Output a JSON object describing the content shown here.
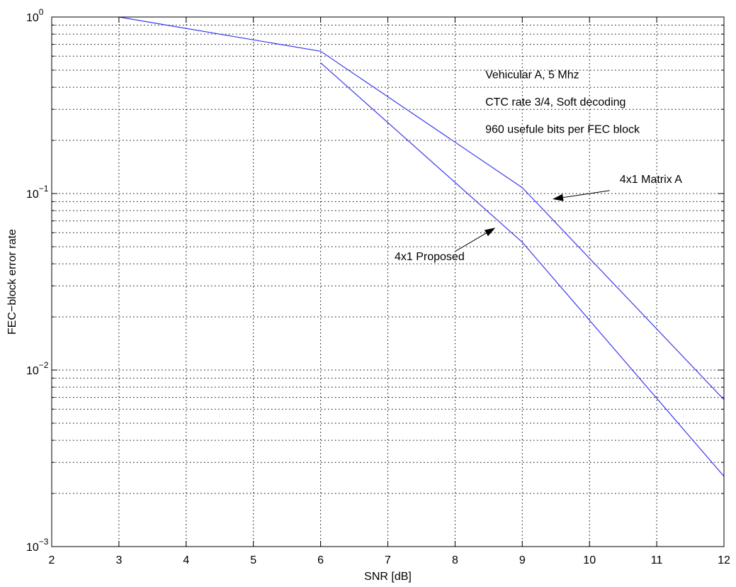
{
  "chart_data": {
    "type": "line",
    "title": "",
    "xlabel": "SNR [dB]",
    "ylabel": "FEC−block error rate",
    "xlim": [
      2,
      12
    ],
    "ylim": [
      0.001,
      1
    ],
    "yscale": "log",
    "grid": true,
    "x_ticks": [
      2,
      3,
      4,
      5,
      6,
      7,
      8,
      9,
      10,
      11,
      12
    ],
    "y_ticks": [
      {
        "value": 1,
        "base": "10",
        "exp": "0"
      },
      {
        "value": 0.1,
        "base": "10",
        "exp": "−1"
      },
      {
        "value": 0.01,
        "base": "10",
        "exp": "−2"
      },
      {
        "value": 0.001,
        "base": "10",
        "exp": "−3"
      }
    ],
    "line_color": "#3a3af0",
    "series": [
      {
        "name": "4x1 Matrix A",
        "x": [
          3,
          6,
          9,
          12
        ],
        "y": [
          1.0,
          0.64,
          0.108,
          0.0068
        ]
      },
      {
        "name": "4x1 Proposed",
        "x": [
          6,
          9,
          12
        ],
        "y": [
          0.55,
          0.053,
          0.0025
        ]
      }
    ],
    "annotations": [
      {
        "id": "conditions-line-1",
        "text": "Vehicular A, 5 Mhz",
        "at": [
          8.45,
          0.45
        ]
      },
      {
        "id": "conditions-line-2",
        "text": "CTC rate 3/4, Soft decoding",
        "at": [
          8.45,
          0.315
        ]
      },
      {
        "id": "conditions-line-3",
        "text": " 960 usefule bits per FEC block",
        "at": [
          8.45,
          0.22
        ]
      },
      {
        "id": "label-matrix-a",
        "text": "4x1 Matrix A",
        "at": [
          10.45,
          0.115
        ],
        "arrow_from": [
          10.3,
          0.104
        ],
        "arrow_to": [
          9.45,
          0.093
        ]
      },
      {
        "id": "label-proposed",
        "text": "4x1 Proposed",
        "at": [
          7.1,
          0.042
        ],
        "arrow_from": [
          8.0,
          0.047
        ],
        "arrow_to": [
          8.6,
          0.064
        ]
      }
    ]
  }
}
